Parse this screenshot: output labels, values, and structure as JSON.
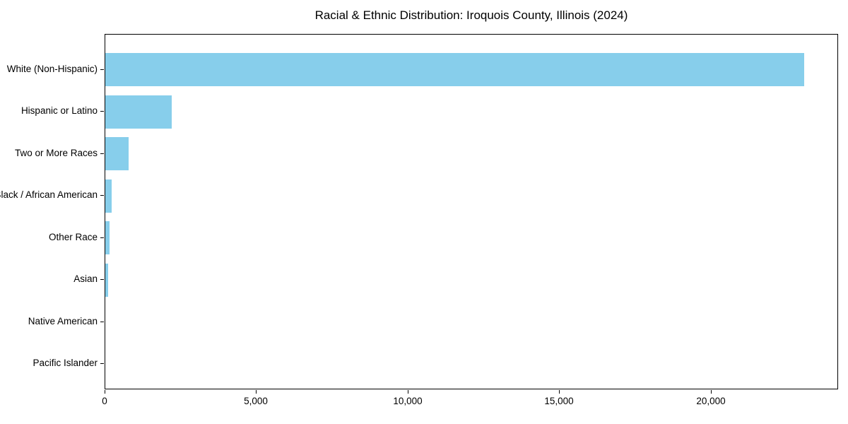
{
  "chart_data": {
    "type": "bar",
    "orientation": "horizontal",
    "title": "Racial & Ethnic Distribution: Iroquois County, Illinois (2024)",
    "categories": [
      "White (Non-Hispanic)",
      "Hispanic or Latino",
      "Two or More Races",
      "Black / African American",
      "Other Race",
      "Asian",
      "Native American",
      "Pacific Islander"
    ],
    "values": [
      23050,
      2200,
      780,
      210,
      130,
      100,
      10,
      5
    ],
    "bar_color": "#87CEEB",
    "xlabel": "",
    "ylabel": "",
    "xlim": [
      0,
      24200
    ],
    "x_ticks": [
      0,
      5000,
      10000,
      15000,
      20000
    ],
    "x_tick_labels": [
      "0",
      "5,000",
      "10,000",
      "15,000",
      "20,000"
    ],
    "grid": false,
    "legend": null,
    "background_color": "#ffffff",
    "text_color": "#000000"
  }
}
